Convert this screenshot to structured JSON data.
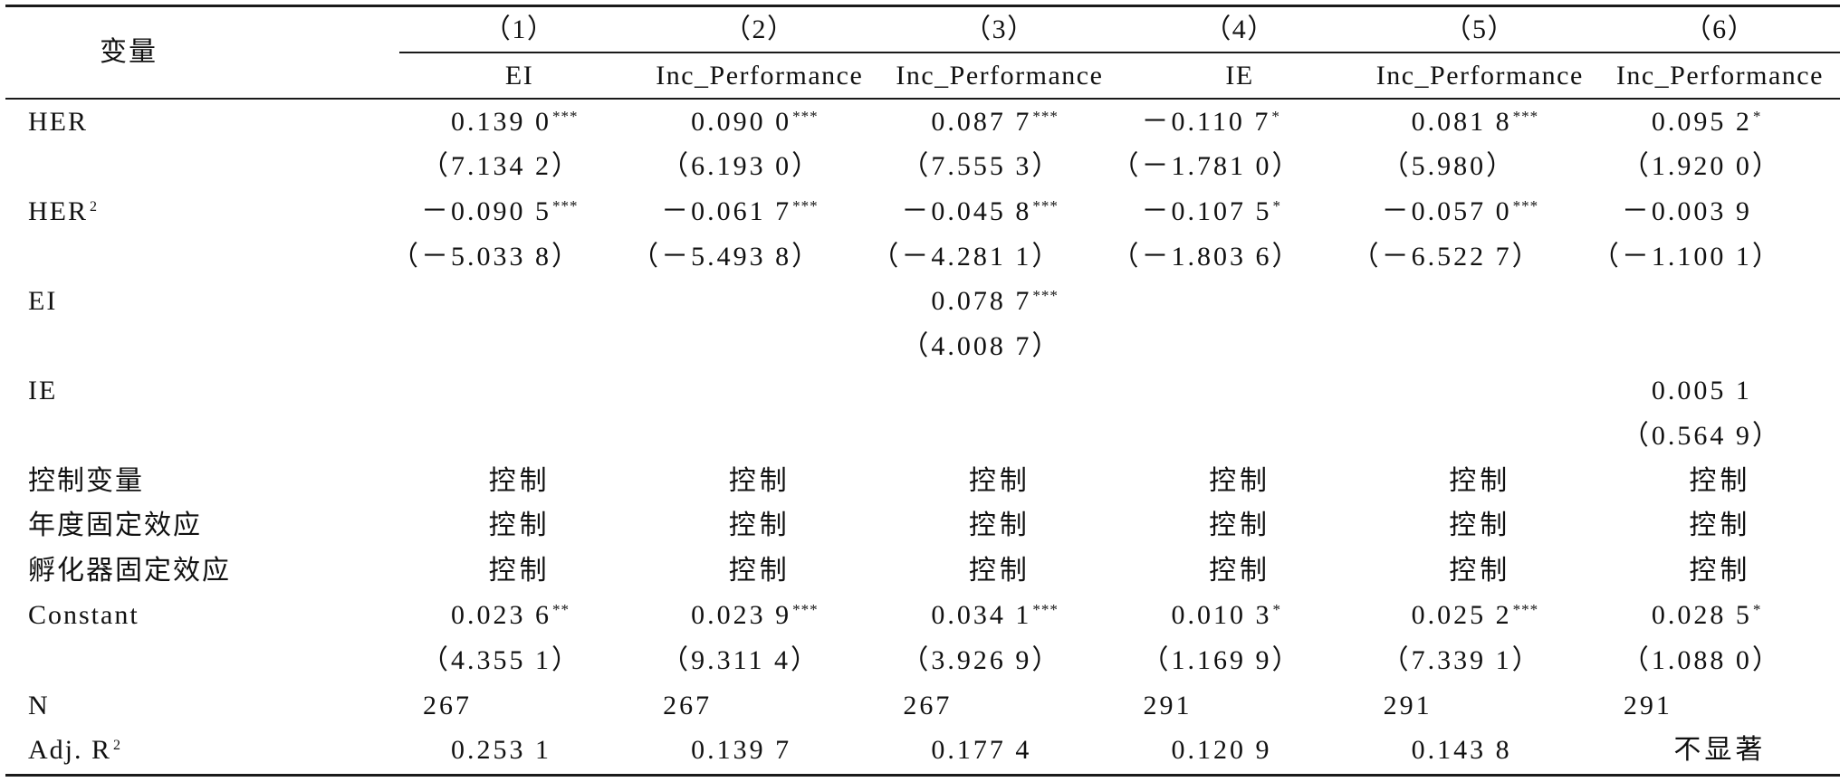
{
  "header": {
    "variable_label": "变量",
    "columns": [
      {
        "number": "（1）",
        "dependent": "EI"
      },
      {
        "number": "（2）",
        "dependent": "Inc_Performance"
      },
      {
        "number": "（3）",
        "dependent": "Inc_Performance"
      },
      {
        "number": "（4）",
        "dependent": "IE"
      },
      {
        "number": "（5）",
        "dependent": "Inc_Performance"
      },
      {
        "number": "（6）",
        "dependent": "Inc_Performance"
      }
    ]
  },
  "rows": [
    {
      "label": "HER",
      "cells": [
        {
          "v": "0.139 0",
          "sig": "***"
        },
        {
          "v": "0.090 0",
          "sig": "***"
        },
        {
          "v": "0.087 7",
          "sig": "***"
        },
        {
          "v": "－0.110 7",
          "sig": "*"
        },
        {
          "v": "0.081 8",
          "sig": "***"
        },
        {
          "v": "0.095 2",
          "sig": "*"
        }
      ]
    },
    {
      "label": "",
      "cells": [
        {
          "v": "（7.134 2）"
        },
        {
          "v": "（6.193 0）"
        },
        {
          "v": "（7.555 3）"
        },
        {
          "v": "（－1.781 0）"
        },
        {
          "v": "（5.980）"
        },
        {
          "v": "（1.920 0）"
        }
      ]
    },
    {
      "label": "HER",
      "sup": "2",
      "cells": [
        {
          "v": "－0.090 5",
          "sig": "***"
        },
        {
          "v": "－0.061 7",
          "sig": "***"
        },
        {
          "v": "－0.045 8",
          "sig": "***"
        },
        {
          "v": "－0.107 5",
          "sig": "*"
        },
        {
          "v": "－0.057 0",
          "sig": "***"
        },
        {
          "v": "－0.003 9"
        }
      ]
    },
    {
      "label": "",
      "cells": [
        {
          "v": "（－5.033 8）"
        },
        {
          "v": "（－5.493 8）"
        },
        {
          "v": "（－4.281 1）"
        },
        {
          "v": "（－1.803 6）"
        },
        {
          "v": "（－6.522 7）"
        },
        {
          "v": "（－1.100 1）"
        }
      ]
    },
    {
      "label": "EI",
      "cells": [
        null,
        null,
        {
          "v": "0.078 7",
          "sig": "***"
        },
        null,
        null,
        null
      ]
    },
    {
      "label": "",
      "cells": [
        null,
        null,
        {
          "v": "（4.008 7）"
        },
        null,
        null,
        null
      ]
    },
    {
      "label": "IE",
      "cells": [
        null,
        null,
        null,
        null,
        null,
        {
          "v": "0.005 1"
        }
      ]
    },
    {
      "label": "",
      "cells": [
        null,
        null,
        null,
        null,
        null,
        {
          "v": "（0.564 9）"
        }
      ]
    },
    {
      "label": "控制变量",
      "cells": [
        {
          "v": "控制"
        },
        {
          "v": "控制"
        },
        {
          "v": "控制"
        },
        {
          "v": "控制"
        },
        {
          "v": "控制"
        },
        {
          "v": "控制"
        }
      ]
    },
    {
      "label": "年度固定效应",
      "cells": [
        {
          "v": "控制"
        },
        {
          "v": "控制"
        },
        {
          "v": "控制"
        },
        {
          "v": "控制"
        },
        {
          "v": "控制"
        },
        {
          "v": "控制"
        }
      ]
    },
    {
      "label": "孵化器固定效应",
      "cells": [
        {
          "v": "控制"
        },
        {
          "v": "控制"
        },
        {
          "v": "控制"
        },
        {
          "v": "控制"
        },
        {
          "v": "控制"
        },
        {
          "v": "控制"
        }
      ]
    },
    {
      "label": "Constant",
      "cells": [
        {
          "v": "0.023 6",
          "sig": "**"
        },
        {
          "v": "0.023 9",
          "sig": "***"
        },
        {
          "v": "0.034 1",
          "sig": "***"
        },
        {
          "v": "0.010 3",
          "sig": "*"
        },
        {
          "v": "0.025 2",
          "sig": "***"
        },
        {
          "v": "0.028 5",
          "sig": "*"
        }
      ]
    },
    {
      "label": "",
      "cells": [
        {
          "v": "（4.355 1）"
        },
        {
          "v": "（9.311 4）"
        },
        {
          "v": "（3.926 9）"
        },
        {
          "v": "（1.169 9）"
        },
        {
          "v": "（7.339 1）"
        },
        {
          "v": "（1.088 0）"
        }
      ]
    },
    {
      "label": "N",
      "cells": [
        {
          "v": "267"
        },
        {
          "v": "267"
        },
        {
          "v": "267"
        },
        {
          "v": "291"
        },
        {
          "v": "291"
        },
        {
          "v": "291"
        }
      ]
    },
    {
      "label": "Adj. R",
      "sup": "2",
      "cells": [
        {
          "v": "0.253 1"
        },
        {
          "v": "0.139 7"
        },
        {
          "v": "0.177 4"
        },
        {
          "v": "0.120 9"
        },
        {
          "v": "0.143 8"
        },
        {
          "v": "不显著"
        }
      ]
    }
  ]
}
